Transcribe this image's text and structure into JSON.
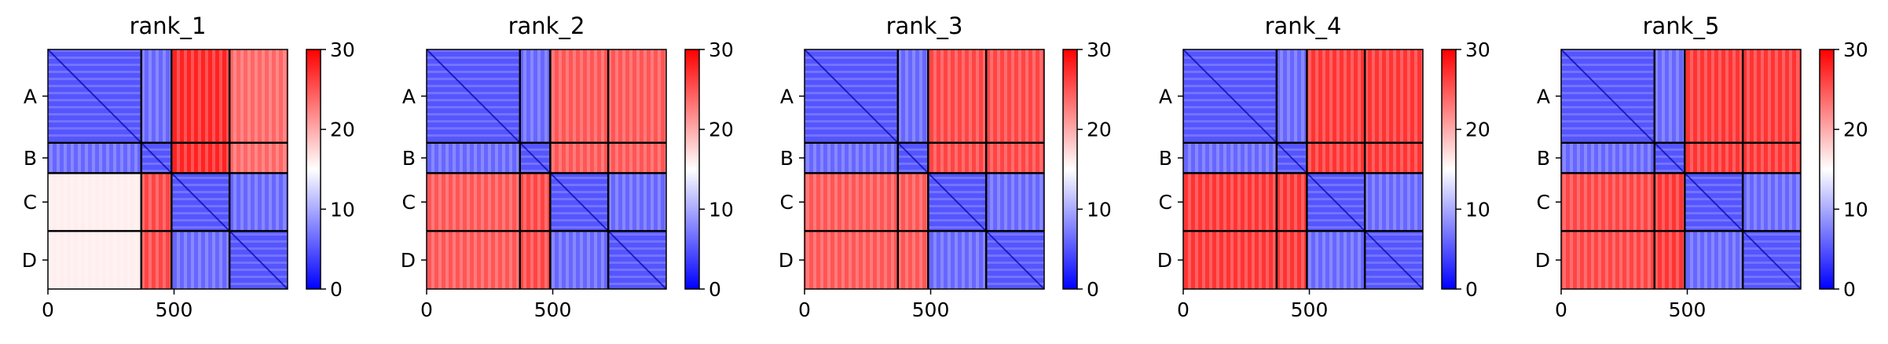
{
  "figure": {
    "background": "#ffffff"
  },
  "chart_data": [
    {
      "type": "heatmap",
      "title": "rank_1",
      "x_ticks": [
        "0",
        "500"
      ],
      "x_tick_values": [
        0,
        500
      ],
      "y_ticks": [
        "A",
        "B",
        "C",
        "D"
      ],
      "xlim": [
        0,
        950
      ],
      "chain_boundaries": [
        370,
        490,
        720
      ],
      "colorbar": {
        "range": [
          0,
          30
        ],
        "ticks": [
          "0",
          "10",
          "20",
          "30"
        ],
        "tick_values": [
          0,
          10,
          20,
          30
        ],
        "colormap": [
          "#0000ff",
          "#ffffff",
          "#ff0000"
        ]
      },
      "cells": [
        [
          5,
          6,
          28,
          24
        ],
        [
          6,
          5,
          28,
          24
        ],
        [
          16,
          26,
          5,
          6
        ],
        [
          16,
          26,
          6,
          5
        ]
      ]
    },
    {
      "type": "heatmap",
      "title": "rank_2",
      "x_ticks": [
        "0",
        "500"
      ],
      "x_tick_values": [
        0,
        500
      ],
      "y_ticks": [
        "A",
        "B",
        "C",
        "D"
      ],
      "xlim": [
        0,
        950
      ],
      "chain_boundaries": [
        370,
        490,
        720
      ],
      "colorbar": {
        "range": [
          0,
          30
        ],
        "ticks": [
          "0",
          "10",
          "20",
          "30"
        ],
        "tick_values": [
          0,
          10,
          20,
          30
        ],
        "colormap": [
          "#0000ff",
          "#ffffff",
          "#ff0000"
        ]
      },
      "cells": [
        [
          5,
          6,
          25,
          25
        ],
        [
          6,
          5,
          25,
          25
        ],
        [
          25,
          26,
          5,
          6
        ],
        [
          25,
          26,
          6,
          5
        ]
      ]
    },
    {
      "type": "heatmap",
      "title": "rank_3",
      "x_ticks": [
        "0",
        "500"
      ],
      "x_tick_values": [
        0,
        500
      ],
      "y_ticks": [
        "A",
        "B",
        "C",
        "D"
      ],
      "xlim": [
        0,
        950
      ],
      "chain_boundaries": [
        370,
        490,
        720
      ],
      "colorbar": {
        "range": [
          0,
          30
        ],
        "ticks": [
          "0",
          "10",
          "20",
          "30"
        ],
        "tick_values": [
          0,
          10,
          20,
          30
        ],
        "colormap": [
          "#0000ff",
          "#ffffff",
          "#ff0000"
        ]
      },
      "cells": [
        [
          5,
          6,
          26,
          26
        ],
        [
          6,
          5,
          26,
          26
        ],
        [
          25,
          25,
          5,
          6
        ],
        [
          25,
          25,
          6,
          5
        ]
      ]
    },
    {
      "type": "heatmap",
      "title": "rank_4",
      "x_ticks": [
        "0",
        "500"
      ],
      "x_tick_values": [
        0,
        500
      ],
      "y_ticks": [
        "A",
        "B",
        "C",
        "D"
      ],
      "xlim": [
        0,
        950
      ],
      "chain_boundaries": [
        370,
        490,
        720
      ],
      "colorbar": {
        "range": [
          0,
          30
        ],
        "ticks": [
          "0",
          "10",
          "20",
          "30"
        ],
        "tick_values": [
          0,
          10,
          20,
          30
        ],
        "colormap": [
          "#0000ff",
          "#ffffff",
          "#ff0000"
        ]
      },
      "cells": [
        [
          5,
          6,
          27,
          27
        ],
        [
          6,
          5,
          27,
          27
        ],
        [
          27,
          27,
          5,
          6
        ],
        [
          27,
          27,
          6,
          5
        ]
      ]
    },
    {
      "type": "heatmap",
      "title": "rank_5",
      "x_ticks": [
        "0",
        "500"
      ],
      "x_tick_values": [
        0,
        500
      ],
      "y_ticks": [
        "A",
        "B",
        "C",
        "D"
      ],
      "xlim": [
        0,
        950
      ],
      "chain_boundaries": [
        370,
        490,
        720
      ],
      "colorbar": {
        "range": [
          0,
          30
        ],
        "ticks": [
          "0",
          "10",
          "20",
          "30"
        ],
        "tick_values": [
          0,
          10,
          20,
          30
        ],
        "colormap": [
          "#0000ff",
          "#ffffff",
          "#ff0000"
        ]
      },
      "cells": [
        [
          5,
          6,
          27,
          27
        ],
        [
          6,
          5,
          27,
          27
        ],
        [
          26,
          27,
          5,
          6
        ],
        [
          26,
          27,
          6,
          5
        ]
      ]
    }
  ]
}
